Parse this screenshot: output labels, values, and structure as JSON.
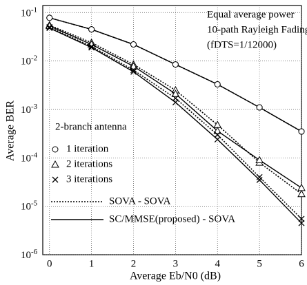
{
  "chart_data": {
    "type": "line",
    "log_y": true,
    "grid": true,
    "color": "#000000",
    "xlabel": "Average Eb/N0 (dB)",
    "ylabel": "Average BER",
    "x": [
      0,
      1,
      2,
      3,
      4,
      5,
      6
    ],
    "xlim": [
      -0.16,
      6
    ],
    "xticks": [
      0,
      1,
      2,
      3,
      4,
      5,
      6
    ],
    "ylim": [
      1e-06,
      0.14
    ],
    "yticks": [
      {
        "value": 0.1,
        "label": "10-1"
      },
      {
        "value": 0.01,
        "label": "10-2"
      },
      {
        "value": 0.001,
        "label": "10-3"
      },
      {
        "value": 0.0001,
        "label": "10-4"
      },
      {
        "value": 1e-05,
        "label": "10-5"
      },
      {
        "value": 1e-06,
        "label": "10-6"
      }
    ],
    "annotations": [
      "Equal average power",
      "10-path Rayleigh Fading",
      "(fDTS=1/12000)",
      "2-branch antenna"
    ],
    "legend_markers": [
      {
        "label": "1 iteration",
        "marker": "circle"
      },
      {
        "label": "2 iterations",
        "marker": "triangle"
      },
      {
        "label": "3 iterations",
        "marker": "cross"
      }
    ],
    "legend_lines": [
      {
        "label": "SOVA - SOVA",
        "style": "dotted"
      },
      {
        "label": "SC/MMSE(proposed) - SOVA",
        "style": "solid"
      }
    ],
    "series": [
      {
        "line": 0,
        "marker": 0,
        "values": [
          0.078,
          0.045,
          0.022,
          0.0085,
          0.0033,
          0.0011,
          0.00035
        ]
      },
      {
        "line": 1,
        "marker": 0,
        "values": [
          0.078,
          0.045,
          0.022,
          0.0085,
          0.0033,
          0.0011,
          0.00035
        ]
      },
      {
        "line": 0,
        "marker": 1,
        "values": [
          0.055,
          0.024,
          0.0085,
          0.0025,
          0.00048,
          8e-05,
          1.8e-05
        ]
      },
      {
        "line": 1,
        "marker": 1,
        "values": [
          0.053,
          0.022,
          0.0078,
          0.0021,
          0.00036,
          9e-05,
          2.4e-05
        ]
      },
      {
        "line": 0,
        "marker": 2,
        "values": [
          0.05,
          0.02,
          0.0065,
          0.0017,
          0.0003,
          4e-05,
          5.5e-06
        ]
      },
      {
        "line": 1,
        "marker": 2,
        "values": [
          0.048,
          0.019,
          0.006,
          0.0014,
          0.00024,
          3.5e-05,
          4.5e-06
        ]
      }
    ]
  }
}
